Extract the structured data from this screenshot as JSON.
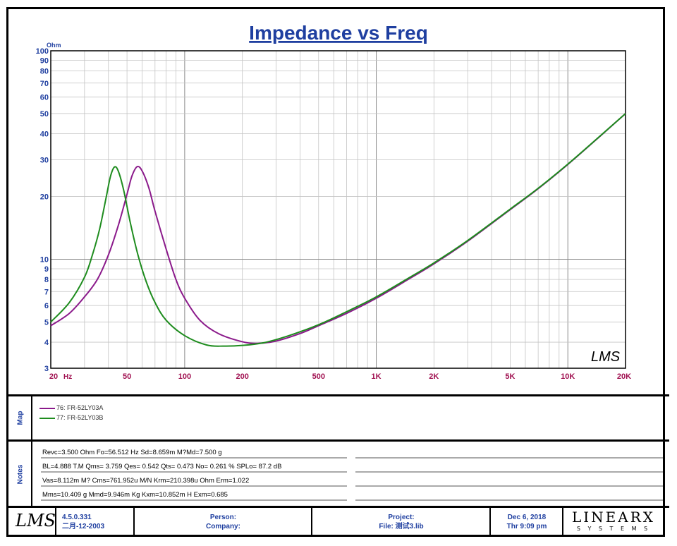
{
  "chart_data": {
    "type": "line",
    "title": "Impedance vs Freq",
    "ylabel": "Ohm",
    "xlabel": "Hz",
    "x_scale": "log",
    "y_scale": "log",
    "xlim": [
      20,
      20000
    ],
    "ylim": [
      3,
      100
    ],
    "x_ticks": [
      {
        "v": 20,
        "label": "20"
      },
      {
        "v": 50,
        "label": "50"
      },
      {
        "v": 100,
        "label": "100"
      },
      {
        "v": 200,
        "label": "200"
      },
      {
        "v": 500,
        "label": "500"
      },
      {
        "v": 1000,
        "label": "1K"
      },
      {
        "v": 2000,
        "label": "2K"
      },
      {
        "v": 5000,
        "label": "5K"
      },
      {
        "v": 10000,
        "label": "10K"
      },
      {
        "v": 20000,
        "label": "20K"
      }
    ],
    "y_ticks": [
      3,
      4,
      5,
      6,
      7,
      8,
      9,
      10,
      20,
      30,
      40,
      50,
      60,
      70,
      80,
      90,
      100
    ],
    "series": [
      {
        "name": "76: FR-52LY03A",
        "color": "#8b1a8b",
        "points": [
          [
            20,
            4.8
          ],
          [
            25,
            5.5
          ],
          [
            30,
            6.6
          ],
          [
            35,
            8.0
          ],
          [
            40,
            10.5
          ],
          [
            45,
            14.5
          ],
          [
            50,
            20.5
          ],
          [
            53,
            25
          ],
          [
            56.5,
            27.8
          ],
          [
            60,
            26.5
          ],
          [
            65,
            22
          ],
          [
            70,
            17
          ],
          [
            80,
            11.2
          ],
          [
            90,
            8.0
          ],
          [
            100,
            6.5
          ],
          [
            120,
            5.1
          ],
          [
            150,
            4.4
          ],
          [
            200,
            4.02
          ],
          [
            240,
            3.95
          ],
          [
            300,
            4.05
          ],
          [
            400,
            4.4
          ],
          [
            500,
            4.8
          ],
          [
            700,
            5.5
          ],
          [
            1000,
            6.5
          ],
          [
            1500,
            8.1
          ],
          [
            2000,
            9.5
          ],
          [
            3000,
            12.2
          ],
          [
            5000,
            17.3
          ],
          [
            7000,
            21.8
          ],
          [
            10000,
            28.5
          ],
          [
            15000,
            39.5
          ],
          [
            20000,
            50
          ]
        ]
      },
      {
        "name": "77: FR-52LY03B",
        "color": "#1e8c1e",
        "points": [
          [
            20,
            5.0
          ],
          [
            25,
            6.2
          ],
          [
            30,
            8.2
          ],
          [
            33,
            10.5
          ],
          [
            36,
            14
          ],
          [
            39,
            20
          ],
          [
            41,
            25
          ],
          [
            43,
            27.7
          ],
          [
            45,
            26.5
          ],
          [
            48,
            21.5
          ],
          [
            52,
            15
          ],
          [
            57,
            10.5
          ],
          [
            63,
            7.8
          ],
          [
            70,
            6.2
          ],
          [
            80,
            5.1
          ],
          [
            100,
            4.3
          ],
          [
            130,
            3.88
          ],
          [
            160,
            3.83
          ],
          [
            200,
            3.86
          ],
          [
            260,
            3.98
          ],
          [
            350,
            4.3
          ],
          [
            500,
            4.85
          ],
          [
            700,
            5.6
          ],
          [
            1000,
            6.6
          ],
          [
            1500,
            8.2
          ],
          [
            2000,
            9.6
          ],
          [
            3000,
            12.3
          ],
          [
            5000,
            17.4
          ],
          [
            7000,
            21.9
          ],
          [
            10000,
            28.6
          ],
          [
            15000,
            39.6
          ],
          [
            20000,
            50
          ]
        ]
      }
    ],
    "watermark": "LMS"
  },
  "map": {
    "label": "Map",
    "entries": [
      "76: FR-52LY03A",
      "77: FR-52LY03B"
    ]
  },
  "notes": {
    "label": "Notes",
    "lines": [
      "Revc=3.500 Ohm  Fo=56.512 Hz  Sd=8.659m M?Md=7.500 g",
      "BL=4.888 T.M  Qms= 3.759  Qes= 0.542  Qts= 0.473  No= 0.261 %  SPLo= 87.2 dB",
      "Vas=8.112m M? Cms=761.952u M/N  Krm=210.398u Ohm  Erm=1.022",
      "Mms=10.409 g  Mmd=9.946m Kg  Kxm=10.852m H  Exm=0.685"
    ]
  },
  "footer": {
    "logo": "LMS",
    "version": "4.5.0.331",
    "build_date": "二月-12-2003",
    "person_label": "Person:",
    "company_label": "Company:",
    "project_label": "Project:",
    "file_label": "File: 测试3.lib",
    "date": "Dec  6, 2018",
    "time": "Thr  9:09 pm",
    "brand_top": "LINEARX",
    "brand_bottom": "S Y S T E M S"
  },
  "colors": {
    "axis_blue": "#1f3fa0",
    "tick_red": "#a01050",
    "series_a": "#8b1a8b",
    "series_b": "#1e8c1e"
  }
}
